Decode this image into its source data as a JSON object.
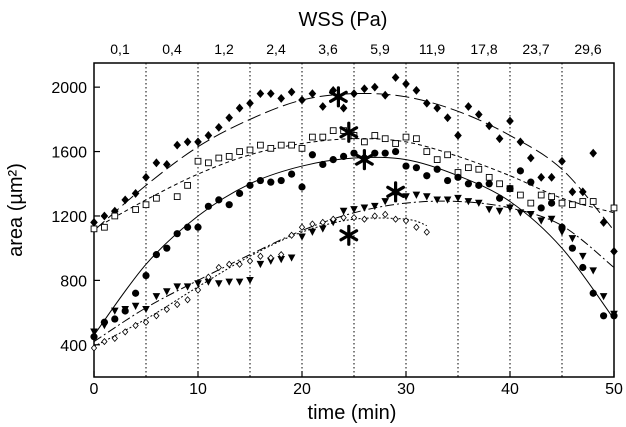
{
  "chart_data": {
    "type": "scatter",
    "title": "WSS (Pa)",
    "xlabel": "time (min)",
    "ylabel": "area (µm²)",
    "xlim": [
      0,
      50
    ],
    "ylim": [
      200,
      2150
    ],
    "x_ticks": [
      0,
      10,
      20,
      30,
      40,
      50
    ],
    "y_ticks": [
      400,
      800,
      1200,
      1600,
      2000
    ],
    "grid": "vertical dotted lines every 5 min",
    "wss_labels": [
      {
        "t": 2.5,
        "label": "0,1"
      },
      {
        "t": 7.5,
        "label": "0,4"
      },
      {
        "t": 12.5,
        "label": "1,2"
      },
      {
        "t": 17.5,
        "label": "2,4"
      },
      {
        "t": 22.5,
        "label": "3,6"
      },
      {
        "t": 27.5,
        "label": "5,9"
      },
      {
        "t": 32.5,
        "label": "11,9"
      },
      {
        "t": 37.5,
        "label": "17,8"
      },
      {
        "t": 42.5,
        "label": "23,7"
      },
      {
        "t": 47.5,
        "label": "29,6"
      }
    ],
    "series": [
      {
        "marker": "diamond-filled",
        "fit": "long-dash",
        "points": [
          [
            0,
            1160
          ],
          [
            1,
            1200
          ],
          [
            2,
            1230
          ],
          [
            3,
            1300
          ],
          [
            4,
            1340
          ],
          [
            5,
            1440
          ],
          [
            6,
            1530
          ],
          [
            7,
            1520
          ],
          [
            8,
            1640
          ],
          [
            9,
            1660
          ],
          [
            10,
            1660
          ],
          [
            11,
            1700
          ],
          [
            12,
            1750
          ],
          [
            13,
            1810
          ],
          [
            14,
            1870
          ],
          [
            15,
            1900
          ],
          [
            16,
            1960
          ],
          [
            17,
            1960
          ],
          [
            18,
            1930
          ],
          [
            19,
            1970
          ],
          [
            20,
            1920
          ],
          [
            21,
            1960
          ],
          [
            22,
            1880
          ],
          [
            23,
            1980
          ],
          [
            24,
            1870
          ],
          [
            25,
            1960
          ],
          [
            26,
            1990
          ],
          [
            27,
            2000
          ],
          [
            28,
            1950
          ],
          [
            29,
            2060
          ],
          [
            30,
            2020
          ],
          [
            31,
            1980
          ],
          [
            32,
            1900
          ],
          [
            33,
            1870
          ],
          [
            34,
            1810
          ],
          [
            35,
            1700
          ],
          [
            36,
            1880
          ],
          [
            37,
            1830
          ],
          [
            38,
            1760
          ],
          [
            39,
            1680
          ],
          [
            40,
            1790
          ],
          [
            41,
            1660
          ],
          [
            42,
            1560
          ],
          [
            43,
            1440
          ],
          [
            44,
            1440
          ],
          [
            45,
            1540
          ],
          [
            46,
            1350
          ],
          [
            47,
            1350
          ],
          [
            48,
            1590
          ],
          [
            49,
            1160
          ],
          [
            50,
            980
          ]
        ],
        "fit_points": [
          [
            0,
            1110
          ],
          [
            5,
            1390
          ],
          [
            10,
            1630
          ],
          [
            15,
            1800
          ],
          [
            20,
            1920
          ],
          [
            25,
            1960
          ],
          [
            30,
            1940
          ],
          [
            35,
            1850
          ],
          [
            40,
            1700
          ],
          [
            45,
            1490
          ],
          [
            50,
            1110
          ]
        ]
      },
      {
        "marker": "square-open",
        "fit": "short-dash",
        "points": [
          [
            0,
            1120
          ],
          [
            1,
            1130
          ],
          [
            2,
            1200
          ],
          [
            4,
            1240
          ],
          [
            5,
            1270
          ],
          [
            6,
            1310
          ],
          [
            8,
            1320
          ],
          [
            9,
            1390
          ],
          [
            10,
            1540
          ],
          [
            11,
            1530
          ],
          [
            12,
            1560
          ],
          [
            13,
            1570
          ],
          [
            14,
            1600
          ],
          [
            15,
            1610
          ],
          [
            16,
            1640
          ],
          [
            17,
            1620
          ],
          [
            18,
            1640
          ],
          [
            19,
            1640
          ],
          [
            20,
            1620
          ],
          [
            21,
            1690
          ],
          [
            22,
            1690
          ],
          [
            23,
            1730
          ],
          [
            24,
            1730
          ],
          [
            25,
            1700
          ],
          [
            26,
            1660
          ],
          [
            27,
            1700
          ],
          [
            28,
            1680
          ],
          [
            29,
            1650
          ],
          [
            30,
            1690
          ],
          [
            31,
            1680
          ],
          [
            32,
            1600
          ],
          [
            33,
            1550
          ],
          [
            34,
            1580
          ],
          [
            35,
            1470
          ],
          [
            36,
            1500
          ],
          [
            37,
            1490
          ],
          [
            38,
            1440
          ],
          [
            39,
            1400
          ],
          [
            40,
            1370
          ],
          [
            41,
            1330
          ],
          [
            42,
            1280
          ],
          [
            43,
            1330
          ],
          [
            44,
            1320
          ],
          [
            45,
            1280
          ],
          [
            46,
            1270
          ],
          [
            47,
            1290
          ],
          [
            48,
            1290
          ],
          [
            50,
            1250
          ]
        ],
        "fit_points": [
          [
            0,
            1120
          ],
          [
            5,
            1300
          ],
          [
            10,
            1460
          ],
          [
            15,
            1580
          ],
          [
            20,
            1650
          ],
          [
            25,
            1680
          ],
          [
            30,
            1660
          ],
          [
            35,
            1570
          ],
          [
            40,
            1450
          ],
          [
            45,
            1310
          ],
          [
            50,
            1220
          ]
        ]
      },
      {
        "marker": "circle-filled",
        "fit": "solid",
        "points": [
          [
            0,
            450
          ],
          [
            1,
            540
          ],
          [
            2,
            560
          ],
          [
            3,
            610
          ],
          [
            4,
            720
          ],
          [
            5,
            830
          ],
          [
            6,
            960
          ],
          [
            7,
            1000
          ],
          [
            8,
            1090
          ],
          [
            9,
            1130
          ],
          [
            10,
            1130
          ],
          [
            11,
            1260
          ],
          [
            12,
            1300
          ],
          [
            13,
            1270
          ],
          [
            14,
            1340
          ],
          [
            15,
            1390
          ],
          [
            16,
            1420
          ],
          [
            17,
            1410
          ],
          [
            18,
            1420
          ],
          [
            19,
            1460
          ],
          [
            20,
            1380
          ],
          [
            21,
            1580
          ],
          [
            22,
            1520
          ],
          [
            23,
            1550
          ],
          [
            24,
            1570
          ],
          [
            25,
            1590
          ],
          [
            26,
            1560
          ],
          [
            27,
            1590
          ],
          [
            28,
            1590
          ],
          [
            29,
            1600
          ],
          [
            30,
            1510
          ],
          [
            31,
            1500
          ],
          [
            32,
            1450
          ],
          [
            33,
            1490
          ],
          [
            34,
            1420
          ],
          [
            35,
            1440
          ],
          [
            36,
            1400
          ],
          [
            37,
            1390
          ],
          [
            38,
            1400
          ],
          [
            39,
            1310
          ],
          [
            40,
            1370
          ],
          [
            41,
            1480
          ],
          [
            42,
            1410
          ],
          [
            43,
            1250
          ],
          [
            44,
            1280
          ],
          [
            45,
            1130
          ],
          [
            46,
            1000
          ],
          [
            47,
            880
          ],
          [
            48,
            720
          ],
          [
            49,
            580
          ],
          [
            50,
            580
          ]
        ],
        "fit_points": [
          [
            0,
            460
          ],
          [
            5,
            900
          ],
          [
            10,
            1200
          ],
          [
            15,
            1400
          ],
          [
            20,
            1510
          ],
          [
            25,
            1560
          ],
          [
            30,
            1550
          ],
          [
            35,
            1450
          ],
          [
            40,
            1290
          ],
          [
            45,
            1000
          ],
          [
            50,
            560
          ]
        ]
      },
      {
        "marker": "triangle-down-filled",
        "fit": "dash-dot",
        "points": [
          [
            0,
            480
          ],
          [
            1,
            520
          ],
          [
            2,
            610
          ],
          [
            3,
            620
          ],
          [
            4,
            640
          ],
          [
            5,
            620
          ],
          [
            6,
            700
          ],
          [
            7,
            730
          ],
          [
            8,
            760
          ],
          [
            9,
            760
          ],
          [
            10,
            780
          ],
          [
            11,
            790
          ],
          [
            12,
            780
          ],
          [
            13,
            790
          ],
          [
            14,
            790
          ],
          [
            15,
            800
          ],
          [
            16,
            900
          ],
          [
            17,
            920
          ],
          [
            18,
            930
          ],
          [
            19,
            940
          ],
          [
            20,
            1070
          ],
          [
            21,
            1100
          ],
          [
            22,
            1120
          ],
          [
            23,
            1160
          ],
          [
            24,
            1230
          ],
          [
            25,
            1240
          ],
          [
            26,
            1250
          ],
          [
            27,
            1260
          ],
          [
            28,
            1290
          ],
          [
            29,
            1330
          ],
          [
            30,
            1320
          ],
          [
            31,
            1330
          ],
          [
            32,
            1320
          ],
          [
            33,
            1300
          ],
          [
            34,
            1300
          ],
          [
            35,
            1310
          ],
          [
            36,
            1290
          ],
          [
            37,
            1280
          ],
          [
            38,
            1240
          ],
          [
            39,
            1230
          ],
          [
            40,
            1250
          ],
          [
            41,
            1220
          ],
          [
            42,
            1210
          ],
          [
            43,
            1170
          ],
          [
            44,
            1180
          ],
          [
            45,
            1100
          ],
          [
            46,
            1060
          ],
          [
            47,
            950
          ],
          [
            48,
            860
          ],
          [
            49,
            700
          ],
          [
            50,
            590
          ]
        ],
        "fit_points": [
          [
            0,
            420
          ],
          [
            5,
            630
          ],
          [
            10,
            800
          ],
          [
            15,
            960
          ],
          [
            20,
            1110
          ],
          [
            25,
            1220
          ],
          [
            30,
            1280
          ],
          [
            35,
            1290
          ],
          [
            40,
            1250
          ],
          [
            45,
            1140
          ],
          [
            50,
            880
          ]
        ]
      },
      {
        "marker": "diamond-open",
        "fit": "dotted",
        "points": [
          [
            0,
            380
          ],
          [
            1,
            420
          ],
          [
            2,
            440
          ],
          [
            3,
            480
          ],
          [
            4,
            520
          ],
          [
            5,
            540
          ],
          [
            6,
            580
          ],
          [
            7,
            620
          ],
          [
            8,
            650
          ],
          [
            9,
            680
          ],
          [
            10,
            740
          ],
          [
            11,
            820
          ],
          [
            12,
            880
          ],
          [
            13,
            900
          ],
          [
            14,
            900
          ],
          [
            15,
            920
          ],
          [
            16,
            950
          ],
          [
            17,
            940
          ],
          [
            18,
            960
          ],
          [
            19,
            1080
          ],
          [
            20,
            1130
          ],
          [
            21,
            1150
          ],
          [
            22,
            1160
          ],
          [
            23,
            1180
          ],
          [
            24,
            1190
          ],
          [
            25,
            1190
          ],
          [
            26,
            1180
          ],
          [
            27,
            1200
          ],
          [
            28,
            1210
          ],
          [
            29,
            1180
          ],
          [
            30,
            1170
          ],
          [
            31,
            1130
          ],
          [
            32,
            1100
          ]
        ],
        "fit_points": [
          [
            0,
            390
          ],
          [
            5,
            560
          ],
          [
            10,
            760
          ],
          [
            15,
            950
          ],
          [
            20,
            1100
          ],
          [
            25,
            1180
          ],
          [
            30,
            1180
          ],
          [
            32,
            1140
          ]
        ]
      }
    ],
    "max_markers": [
      {
        "x": 23.5,
        "y": 1940
      },
      {
        "x": 24.5,
        "y": 1720
      },
      {
        "x": 26,
        "y": 1550
      },
      {
        "x": 29,
        "y": 1350
      },
      {
        "x": 24.5,
        "y": 1080
      }
    ]
  }
}
